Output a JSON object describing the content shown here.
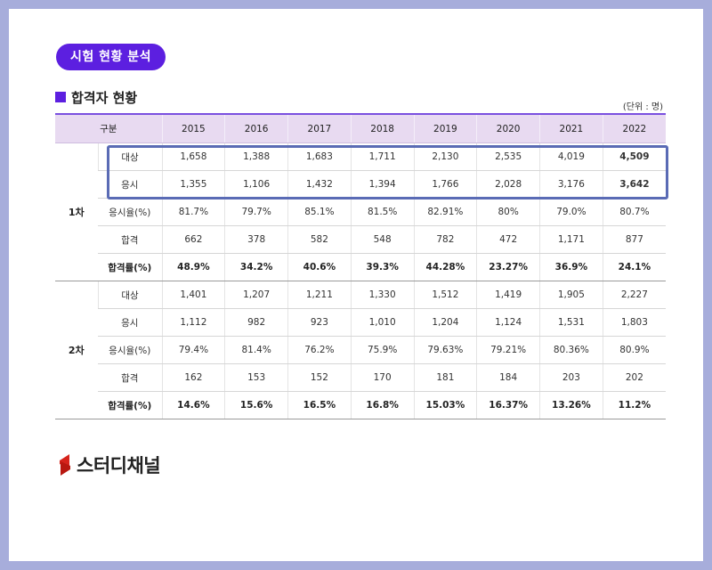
{
  "header": {
    "badge": "시험 현황 분석"
  },
  "section": {
    "title": "합격자 현황",
    "unit_note": "(단위 : 명)"
  },
  "table": {
    "corner_label": "구분",
    "years": [
      "2015",
      "2016",
      "2017",
      "2018",
      "2019",
      "2020",
      "2021",
      "2022"
    ],
    "groups": [
      {
        "label": "1차",
        "rows": [
          {
            "label": "대상",
            "values": [
              "1,658",
              "1,388",
              "1,683",
              "1,711",
              "2,130",
              "2,535",
              "4,019",
              "4,509"
            ]
          },
          {
            "label": "응시",
            "values": [
              "1,355",
              "1,106",
              "1,432",
              "1,394",
              "1,766",
              "2,028",
              "3,176",
              "3,642"
            ]
          },
          {
            "label": "응시율(%)",
            "values": [
              "81.7%",
              "79.7%",
              "85.1%",
              "81.5%",
              "82.91%",
              "80%",
              "79.0%",
              "80.7%"
            ]
          },
          {
            "label": "합격",
            "values": [
              "662",
              "378",
              "582",
              "548",
              "782",
              "472",
              "1,171",
              "877"
            ]
          },
          {
            "label": "합격률(%)",
            "values": [
              "48.9%",
              "34.2%",
              "40.6%",
              "39.3%",
              "44.28%",
              "23.27%",
              "36.9%",
              "24.1%"
            ]
          }
        ]
      },
      {
        "label": "2차",
        "rows": [
          {
            "label": "대상",
            "values": [
              "1,401",
              "1,207",
              "1,211",
              "1,330",
              "1,512",
              "1,419",
              "1,905",
              "2,227"
            ]
          },
          {
            "label": "응시",
            "values": [
              "1,112",
              "982",
              "923",
              "1,010",
              "1,204",
              "1,124",
              "1,531",
              "1,803"
            ]
          },
          {
            "label": "응시율(%)",
            "values": [
              "79.4%",
              "81.4%",
              "76.2%",
              "75.9%",
              "79.63%",
              "79.21%",
              "80.36%",
              "80.9%"
            ]
          },
          {
            "label": "합격",
            "values": [
              "162",
              "153",
              "152",
              "170",
              "181",
              "184",
              "203",
              "202"
            ]
          },
          {
            "label": "합격률(%)",
            "values": [
              "14.6%",
              "15.6%",
              "16.5%",
              "16.8%",
              "15.03%",
              "16.37%",
              "13.26%",
              "11.2%"
            ]
          }
        ]
      }
    ]
  },
  "footer": {
    "logo_text": "스터디채널"
  },
  "colors": {
    "accent": "#5c1fe0",
    "highlight_border": "#5a6bb5",
    "header_bg": "#e8daf1",
    "page_bg": "#a7addb"
  },
  "icons": {
    "logo": "red-s-logo-icon",
    "section_marker": "square-bullet-icon"
  }
}
